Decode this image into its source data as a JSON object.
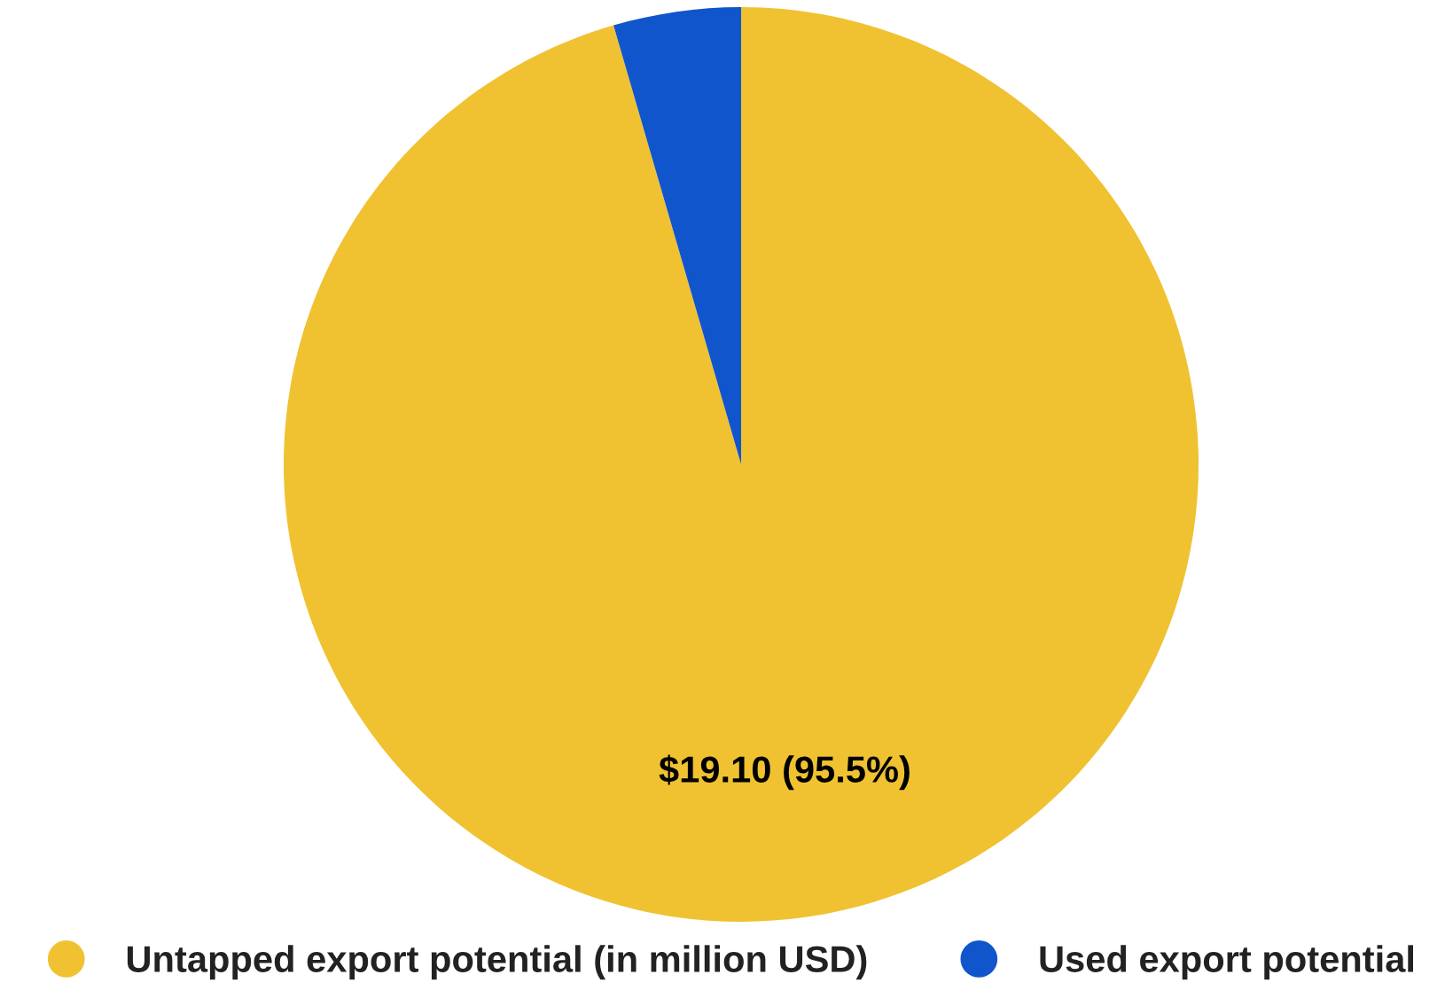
{
  "chart_data": {
    "type": "pie",
    "categories": [
      "Untapped export potential (in million USD)",
      "Used export potential"
    ],
    "values": [
      19.1,
      0.9
    ],
    "colors": [
      "#f0c232",
      "#1155cc"
    ],
    "value_labels": [
      "$19.10 (95.5%)",
      null
    ],
    "legend": "bottom"
  }
}
